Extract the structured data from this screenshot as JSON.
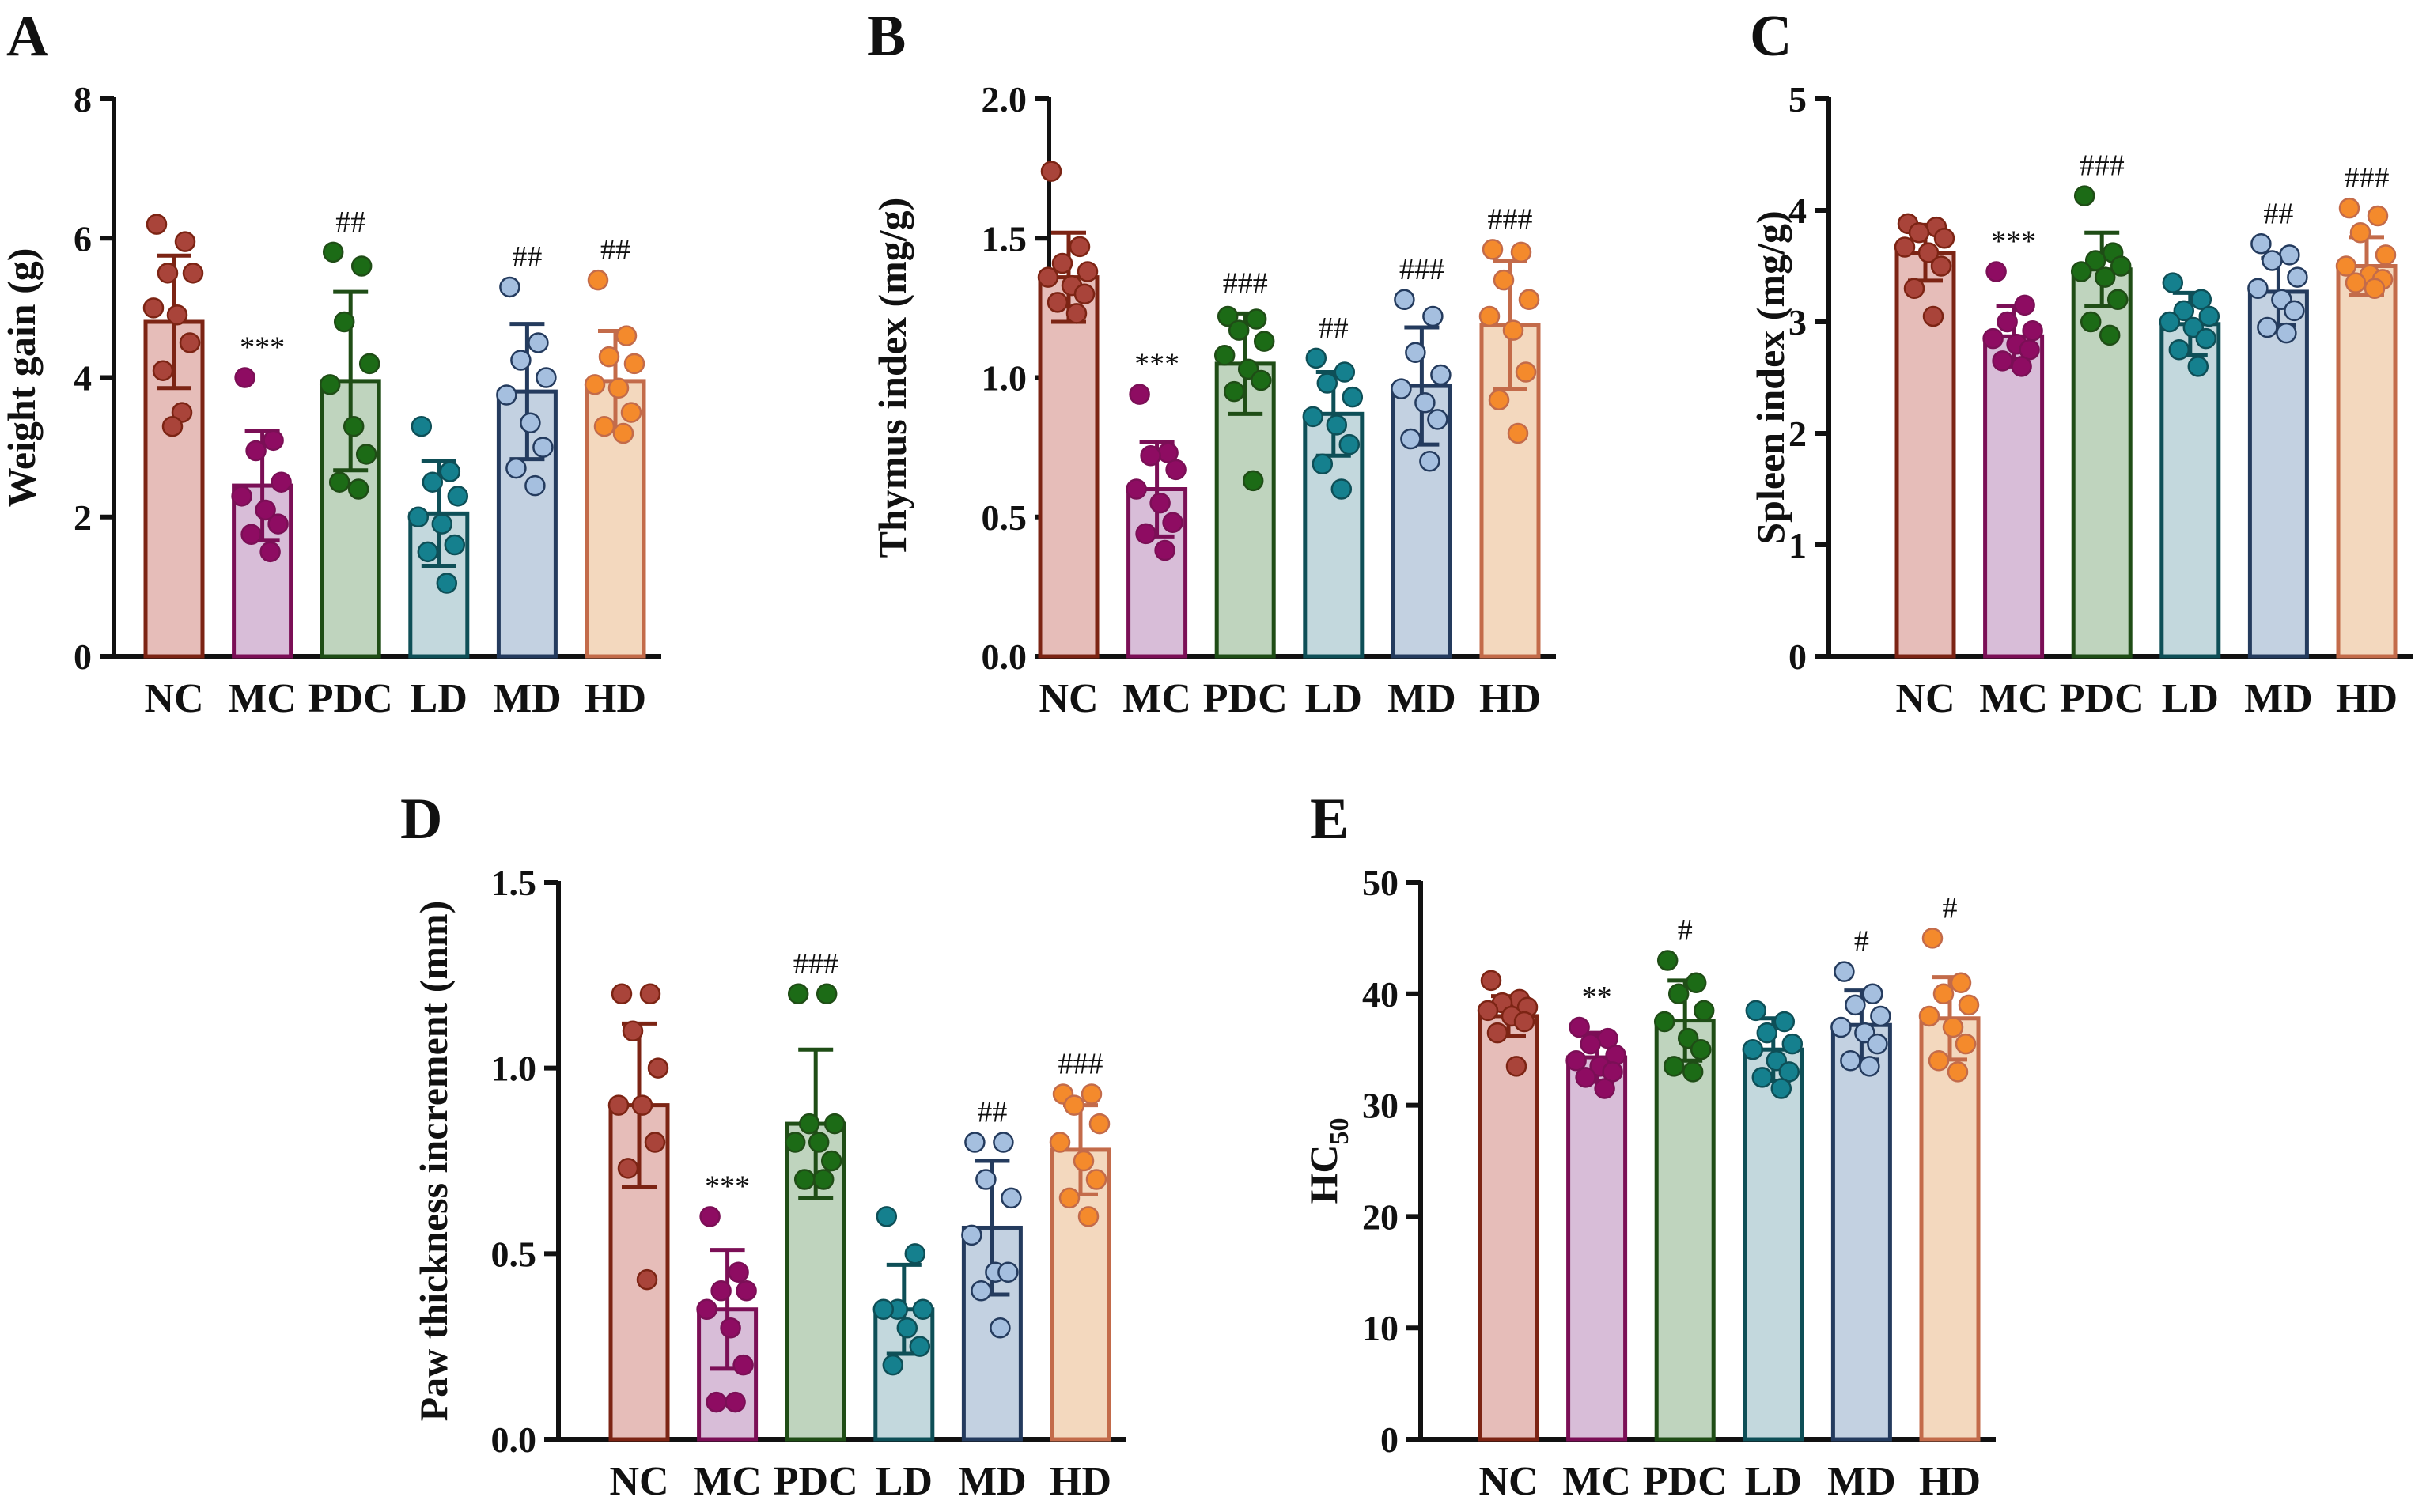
{
  "figure": {
    "panels": [
      "A",
      "B",
      "C",
      "D",
      "E"
    ]
  },
  "palette": {
    "NC": {
      "fill": "#e6bdb9",
      "stroke": "#7c2414",
      "dot": "#a9443a"
    },
    "MC": {
      "fill": "#d8bdd8",
      "stroke": "#7b0f56",
      "dot": "#8e0c62"
    },
    "PDC": {
      "fill": "#bfd4be",
      "stroke": "#1f4d16",
      "dot": "#1c6b16"
    },
    "LD": {
      "fill": "#c3d8dd",
      "stroke": "#0e4f57",
      "dot": "#15808e"
    },
    "MD": {
      "fill": "#c3d1e1",
      "stroke": "#243b5e",
      "dot": "#a5bfdf"
    },
    "HD": {
      "fill": "#f3d8be",
      "stroke": "#c36b4a",
      "dot": "#f48a2c"
    },
    "axis": "#111111"
  },
  "chart_data": [
    {
      "panel": "A",
      "type": "bar",
      "title": "",
      "xlabel": "",
      "ylabel": "Weight gain (g)",
      "ylim": [
        0,
        8
      ],
      "yticks": [
        "0",
        "2",
        "4",
        "6",
        "8"
      ],
      "ytick_values": [
        0,
        2,
        4,
        6,
        8
      ],
      "categories": [
        "NC",
        "MC",
        "PDC",
        "LD",
        "MD",
        "HD"
      ],
      "means": [
        4.8,
        2.45,
        3.95,
        2.05,
        3.8,
        3.95
      ],
      "sd": [
        0.95,
        0.78,
        1.28,
        0.75,
        0.97,
        0.72
      ],
      "points": [
        [
          6.2,
          5.95,
          5.5,
          5.5,
          5.0,
          4.9,
          4.5,
          4.1,
          3.5,
          3.3
        ],
        [
          4.0,
          3.1,
          2.95,
          2.5,
          2.3,
          2.1,
          1.9,
          1.75,
          1.5
        ],
        [
          5.8,
          5.6,
          4.8,
          4.2,
          3.9,
          3.3,
          2.9,
          2.5,
          2.4
        ],
        [
          3.3,
          2.65,
          2.5,
          2.3,
          2.0,
          1.9,
          1.6,
          1.5,
          1.05
        ],
        [
          5.3,
          4.5,
          4.25,
          4.0,
          3.75,
          3.35,
          3.0,
          2.7,
          2.45
        ],
        [
          5.4,
          4.6,
          4.3,
          4.2,
          3.9,
          3.85,
          3.5,
          3.3,
          3.2
        ]
      ],
      "significance": [
        "",
        "***",
        "##",
        "",
        "##",
        "##"
      ]
    },
    {
      "panel": "B",
      "type": "bar",
      "title": "",
      "xlabel": "",
      "ylabel": "Thymus index (mg/g)",
      "ylim": [
        0,
        2
      ],
      "yticks": [
        "0.0",
        "0.5",
        "1.0",
        "1.5",
        "2.0"
      ],
      "ytick_values": [
        0,
        0.5,
        1.0,
        1.5,
        2.0
      ],
      "categories": [
        "NC",
        "MC",
        "PDC",
        "LD",
        "MD",
        "HD"
      ],
      "means": [
        1.36,
        0.6,
        1.05,
        0.87,
        0.97,
        1.19
      ],
      "sd": [
        0.16,
        0.17,
        0.18,
        0.15,
        0.21,
        0.23
      ],
      "points": [
        [
          1.74,
          1.47,
          1.41,
          1.38,
          1.36,
          1.33,
          1.3,
          1.27,
          1.23
        ],
        [
          0.94,
          0.73,
          0.72,
          0.67,
          0.6,
          0.55,
          0.48,
          0.44,
          0.38
        ],
        [
          1.22,
          1.21,
          1.17,
          1.13,
          1.08,
          1.03,
          0.99,
          0.95,
          0.63
        ],
        [
          1.07,
          1.02,
          0.98,
          0.93,
          0.86,
          0.83,
          0.76,
          0.69,
          0.6
        ],
        [
          1.28,
          1.22,
          1.09,
          1.01,
          0.96,
          0.91,
          0.85,
          0.78,
          0.7
        ],
        [
          1.46,
          1.45,
          1.35,
          1.28,
          1.22,
          1.17,
          1.02,
          0.92,
          0.8
        ]
      ],
      "significance": [
        "",
        "***",
        "###",
        "##",
        "###",
        "###"
      ]
    },
    {
      "panel": "C",
      "type": "bar",
      "title": "",
      "xlabel": "",
      "ylabel": "Spleen index (mg/g)",
      "ylim": [
        0,
        5
      ],
      "yticks": [
        "0",
        "1",
        "2",
        "3",
        "4",
        "5"
      ],
      "ytick_values": [
        0,
        1,
        2,
        3,
        4,
        5
      ],
      "categories": [
        "NC",
        "MC",
        "PDC",
        "LD",
        "MD",
        "HD"
      ],
      "means": [
        3.62,
        2.87,
        3.47,
        2.98,
        3.27,
        3.5
      ],
      "sd": [
        0.25,
        0.27,
        0.33,
        0.28,
        0.3,
        0.26
      ],
      "points": [
        [
          3.88,
          3.85,
          3.8,
          3.75,
          3.67,
          3.62,
          3.5,
          3.3,
          3.05
        ],
        [
          3.45,
          3.15,
          3.0,
          2.92,
          2.85,
          2.8,
          2.75,
          2.65,
          2.6
        ],
        [
          4.13,
          3.62,
          3.55,
          3.5,
          3.45,
          3.4,
          3.2,
          3.0,
          2.88
        ],
        [
          3.35,
          3.2,
          3.1,
          3.05,
          3.0,
          2.95,
          2.85,
          2.75,
          2.6
        ],
        [
          3.7,
          3.6,
          3.55,
          3.4,
          3.3,
          3.2,
          3.1,
          2.95,
          2.9
        ],
        [
          4.02,
          3.95,
          3.8,
          3.6,
          3.5,
          3.42,
          3.38,
          3.35,
          3.3
        ]
      ],
      "significance": [
        "",
        "***",
        "###",
        "",
        "##",
        "###"
      ]
    },
    {
      "panel": "D",
      "type": "bar",
      "title": "",
      "xlabel": "",
      "ylabel": "Paw thickness increment (mm)",
      "ylim": [
        0,
        1.5
      ],
      "yticks": [
        "0.0",
        "0.5",
        "1.0",
        "1.5"
      ],
      "ytick_values": [
        0,
        0.5,
        1.0,
        1.5
      ],
      "categories": [
        "NC",
        "MC",
        "PDC",
        "LD",
        "MD",
        "HD"
      ],
      "means": [
        0.9,
        0.35,
        0.85,
        0.35,
        0.57,
        0.78
      ],
      "sd": [
        0.22,
        0.16,
        0.2,
        0.12,
        0.18,
        0.12
      ],
      "points": [
        [
          1.2,
          1.2,
          1.1,
          1.0,
          0.9,
          0.9,
          0.8,
          0.73,
          0.43
        ],
        [
          0.6,
          0.45,
          0.4,
          0.4,
          0.35,
          0.3,
          0.2,
          0.1,
          0.1
        ],
        [
          1.2,
          1.2,
          0.85,
          0.85,
          0.8,
          0.8,
          0.75,
          0.7,
          0.7
        ],
        [
          0.6,
          0.5,
          0.35,
          0.35,
          0.35,
          0.3,
          0.25,
          0.2
        ],
        [
          0.8,
          0.8,
          0.7,
          0.65,
          0.55,
          0.45,
          0.45,
          0.4,
          0.3
        ],
        [
          0.93,
          0.93,
          0.9,
          0.85,
          0.8,
          0.75,
          0.7,
          0.65,
          0.6
        ]
      ],
      "significance": [
        "",
        "***",
        "###",
        "",
        "##",
        "###"
      ]
    },
    {
      "panel": "E",
      "type": "bar",
      "title": "",
      "xlabel": "",
      "ylabel": "HC",
      "ylabel_sub": "50",
      "ylim": [
        0,
        50
      ],
      "yticks": [
        "0",
        "10",
        "20",
        "30",
        "40",
        "50"
      ],
      "ytick_values": [
        0,
        10,
        20,
        30,
        40,
        50
      ],
      "categories": [
        "NC",
        "MC",
        "PDC",
        "LD",
        "MD",
        "HD"
      ],
      "means": [
        38.0,
        34.3,
        37.6,
        35.0,
        37.2,
        37.8
      ],
      "sd": [
        1.8,
        2.2,
        3.6,
        2.8,
        3.1,
        3.7
      ],
      "points": [
        [
          41.2,
          39.5,
          39.2,
          38.8,
          38.5,
          38.0,
          37.5,
          36.5,
          33.5
        ],
        [
          37.0,
          36.0,
          35.5,
          34.5,
          34.0,
          33.5,
          33.0,
          32.5,
          31.5
        ],
        [
          43.0,
          41.0,
          40.0,
          38.5,
          37.5,
          36.0,
          35.0,
          33.5,
          33.0
        ],
        [
          38.5,
          37.5,
          36.5,
          35.5,
          35.0,
          34.0,
          33.0,
          32.5,
          31.5
        ],
        [
          42.0,
          40.0,
          39.0,
          38.0,
          37.0,
          36.5,
          35.5,
          34.0,
          33.5
        ],
        [
          45.0,
          41.0,
          40.0,
          39.0,
          38.0,
          37.0,
          35.5,
          34.0,
          33.0
        ]
      ],
      "significance": [
        "",
        "**",
        "#",
        "",
        "#",
        "#"
      ]
    }
  ]
}
